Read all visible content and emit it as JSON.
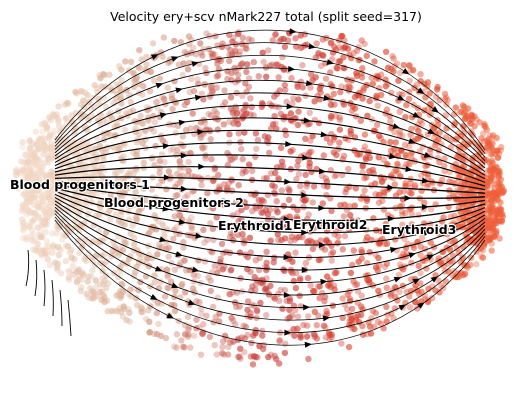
{
  "chart_data": {
    "type": "scatter",
    "title": "Velocity ery+scv nMark227 total (split seed=317)",
    "xlabel": "",
    "ylabel": "",
    "grid": false,
    "legend": "on data",
    "cell_colors": {
      "Blood progenitors 1": "#f3d9c7",
      "Blood progenitors 2": "#d8a98e",
      "Erythroid1": "#c8413e",
      "Erythroid2": "#d9412b",
      "Erythroid3": "#f0603a"
    },
    "stream_color": "#000000",
    "cluster_labels": [
      {
        "text": "Blood progenitors 1"
      },
      {
        "text": "Blood progenitors 2"
      },
      {
        "text": "Erythroid1"
      },
      {
        "text": "Erythroid2"
      },
      {
        "text": "Erythroid3"
      }
    ]
  }
}
